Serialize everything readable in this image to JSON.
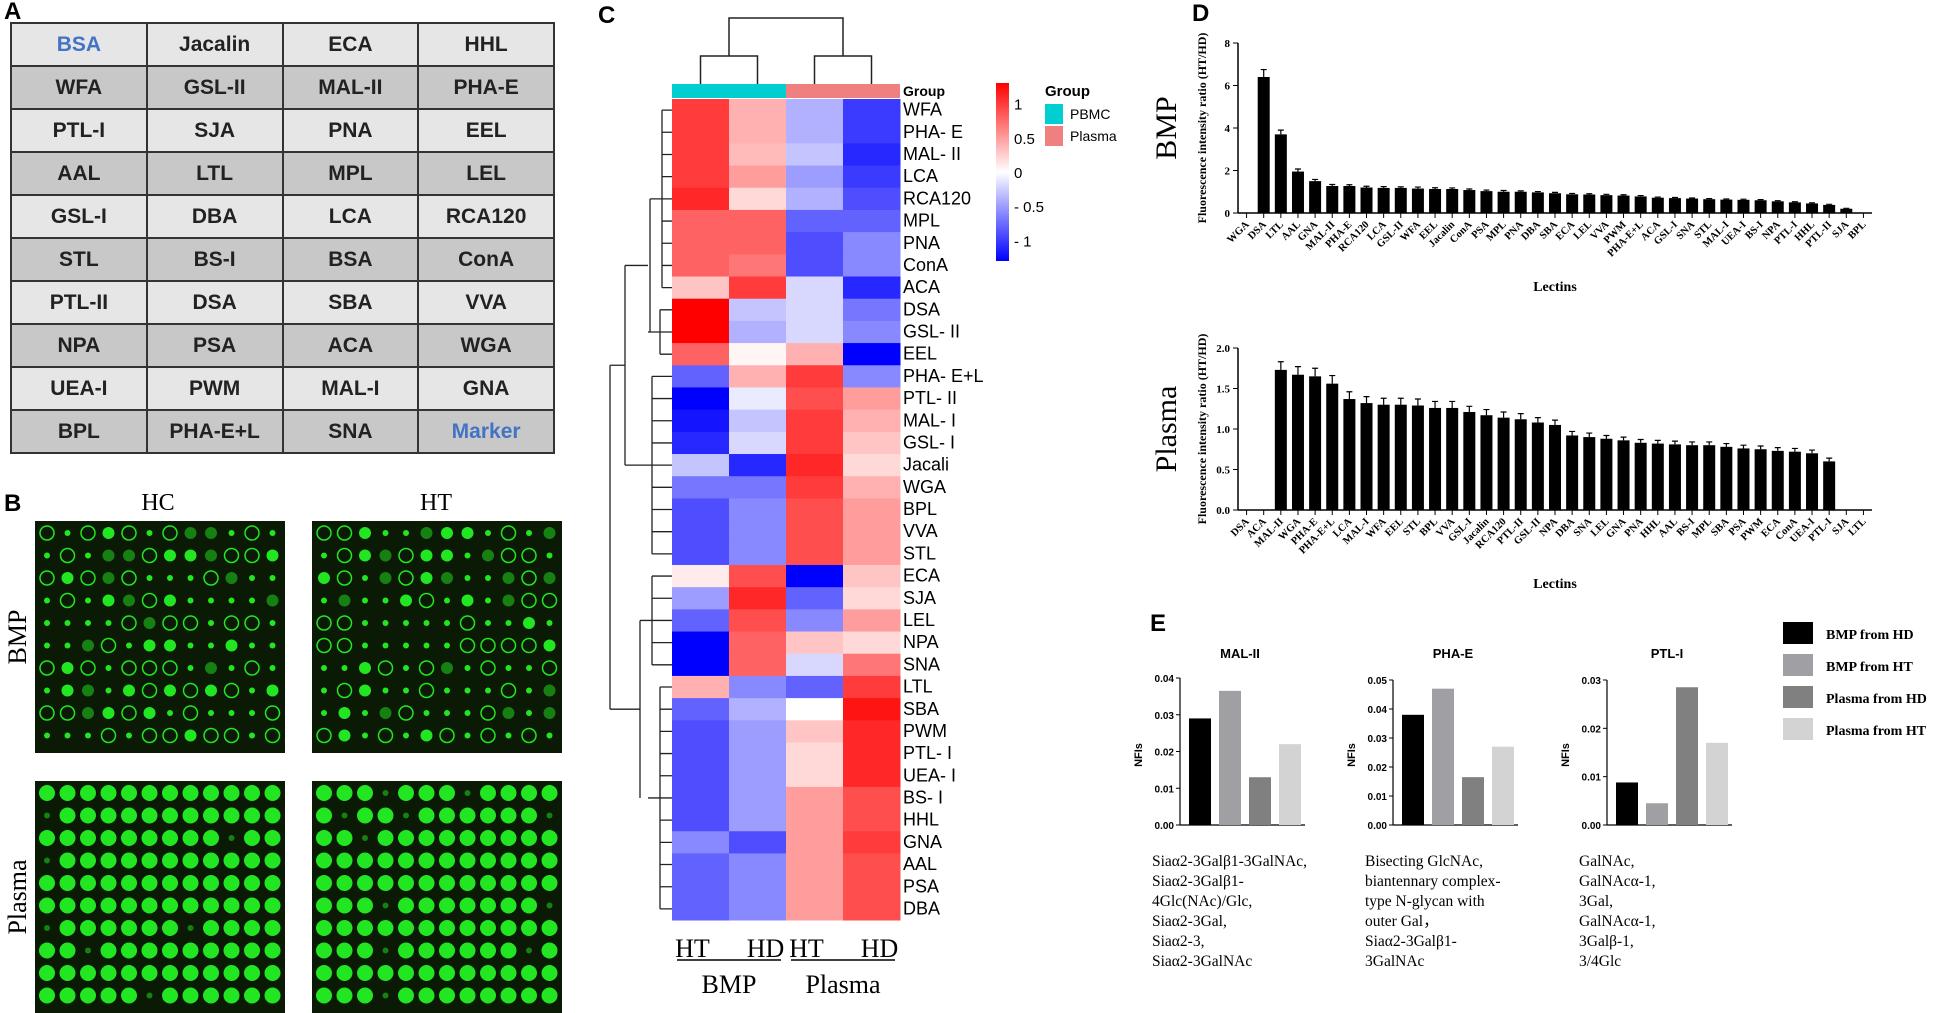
{
  "panel_labels": {
    "a": "A",
    "b": "B",
    "c": "C",
    "d": "D",
    "e": "E"
  },
  "panel_a": {
    "rows": [
      [
        "BSA",
        "Jacalin",
        "ECA",
        "HHL"
      ],
      [
        "WFA",
        "GSL-II",
        "MAL-II",
        "PHA-E"
      ],
      [
        "PTL-I",
        "SJA",
        "PNA",
        "EEL"
      ],
      [
        "AAL",
        "LTL",
        "MPL",
        "LEL"
      ],
      [
        "GSL-I",
        "DBA",
        "LCA",
        "RCA120"
      ],
      [
        "STL",
        "BS-I",
        "BSA",
        "ConA"
      ],
      [
        "PTL-II",
        "DSA",
        "SBA",
        "VVA"
      ],
      [
        "NPA",
        "PSA",
        "ACA",
        "WGA"
      ],
      [
        "UEA-I",
        "PWM",
        "MAL-I",
        "GNA"
      ],
      [
        "BPL",
        "PHA-E+L",
        "SNA",
        "Marker"
      ]
    ],
    "highlight_color": "#4472c4",
    "highlighted": [
      "0.0",
      "9.3"
    ]
  },
  "panel_b": {
    "col_labels": [
      "HC",
      "HT"
    ],
    "row_labels": [
      "BMP",
      "Plasma"
    ],
    "spot_color": "#22e622"
  },
  "chart_data": [
    {
      "id": "C",
      "type": "heatmap",
      "title": "",
      "columns": [
        "HT",
        "HD",
        "HT",
        "HD"
      ],
      "column_groups": [
        {
          "name": "BMP",
          "cols": [
            0,
            1
          ],
          "group": "PBMC"
        },
        {
          "name": "Plasma",
          "cols": [
            2,
            3
          ],
          "group": "Plasma"
        }
      ],
      "group_header": "Group",
      "legend": {
        "title": "Group",
        "entries": [
          {
            "label": "PBMC",
            "color": "#00ced1"
          },
          {
            "label": "Plasma",
            "color": "#f08080"
          }
        ]
      },
      "colorbar": {
        "ticks": [
          "1",
          "0.5",
          "0",
          "- 0.5",
          "- 1"
        ],
        "tick_values": [
          1,
          0.5,
          0,
          -0.5,
          -1
        ],
        "range": [
          -1.3,
          1.3
        ],
        "low": "#0000ff",
        "mid": "#ffffff",
        "high": "#ff0000"
      },
      "rows": [
        "WFA",
        "PHA- E",
        "MAL- II",
        "LCA",
        "RCA120",
        "MPL",
        "PNA",
        "ConA",
        "ACA",
        "DSA",
        "GSL- II",
        "EEL",
        "PHA- E+L",
        "PTL- II",
        "MAL- I",
        "GSL- I",
        "Jacali",
        "WGA",
        "BPL",
        "VVA",
        "STL",
        "ECA",
        "SJA",
        "LEL",
        "NPA",
        "SNA",
        "LTL",
        "SBA",
        "PWM",
        "PTL- I",
        "UEA- I",
        "BS- I",
        "HHL",
        "GNA",
        "AAL",
        "PSA",
        "DBA"
      ],
      "values": [
        [
          1.0,
          0.4,
          -0.4,
          -1.0
        ],
        [
          1.0,
          0.4,
          -0.4,
          -1.0
        ],
        [
          1.0,
          0.35,
          -0.3,
          -1.1
        ],
        [
          1.0,
          0.5,
          -0.5,
          -1.0
        ],
        [
          1.1,
          0.2,
          -0.4,
          -0.9
        ],
        [
          0.8,
          0.8,
          -0.8,
          -0.8
        ],
        [
          0.8,
          0.8,
          -0.9,
          -0.6
        ],
        [
          0.8,
          0.7,
          -0.9,
          -0.6
        ],
        [
          0.3,
          1.0,
          -0.2,
          -1.1
        ],
        [
          1.3,
          -0.3,
          -0.2,
          -0.7
        ],
        [
          1.3,
          -0.4,
          -0.2,
          -0.6
        ],
        [
          0.8,
          0.05,
          0.4,
          -1.3
        ],
        [
          -0.8,
          0.4,
          1.0,
          -0.6
        ],
        [
          -1.3,
          -0.1,
          0.9,
          0.5
        ],
        [
          -1.2,
          -0.3,
          1.0,
          0.4
        ],
        [
          -1.1,
          -0.2,
          1.0,
          0.3
        ],
        [
          -0.3,
          -1.1,
          1.1,
          0.2
        ],
        [
          -0.7,
          -0.7,
          1.0,
          0.4
        ],
        [
          -0.9,
          -0.6,
          0.9,
          0.5
        ],
        [
          -0.9,
          -0.6,
          0.9,
          0.5
        ],
        [
          -0.9,
          -0.6,
          0.9,
          0.5
        ],
        [
          0.1,
          0.9,
          -1.3,
          0.3
        ],
        [
          -0.5,
          1.1,
          -0.8,
          0.2
        ],
        [
          -0.8,
          0.9,
          -0.6,
          0.5
        ],
        [
          -1.3,
          0.8,
          0.3,
          0.2
        ],
        [
          -1.3,
          0.8,
          -0.2,
          0.7
        ],
        [
          0.4,
          -0.6,
          -0.8,
          1.0
        ],
        [
          -0.8,
          -0.4,
          0.0,
          1.2
        ],
        [
          -0.9,
          -0.5,
          0.3,
          1.1
        ],
        [
          -0.9,
          -0.5,
          0.2,
          1.1
        ],
        [
          -0.9,
          -0.5,
          0.2,
          1.1
        ],
        [
          -0.9,
          -0.5,
          0.5,
          0.9
        ],
        [
          -0.9,
          -0.5,
          0.5,
          0.9
        ],
        [
          -0.6,
          -0.9,
          0.5,
          1.0
        ],
        [
          -0.8,
          -0.6,
          0.5,
          0.9
        ],
        [
          -0.8,
          -0.6,
          0.5,
          0.9
        ],
        [
          -0.8,
          -0.6,
          0.5,
          0.9
        ]
      ]
    },
    {
      "id": "D-BMP",
      "type": "bar",
      "panel_title": "BMP",
      "ylabel": "Fluorescence intensity ratio (HT/HD)",
      "xlabel": "Lectins",
      "ylim": [
        0,
        8
      ],
      "yticks": [
        "0",
        "2",
        "4",
        "6",
        "8"
      ],
      "categories": [
        "WGA",
        "DSA",
        "LTL",
        "AAL",
        "GNA",
        "MAL-II",
        "PHA-E",
        "RCA120",
        "LCA",
        "GSL-II",
        "WFA",
        "EEL",
        "Jacalin",
        "ConA",
        "PSA",
        "MPL",
        "PNA",
        "DBA",
        "SBA",
        "ECA",
        "LEL",
        "VVA",
        "PWM",
        "PHA-E+L",
        "ACA",
        "GSL-I",
        "SNA",
        "STL",
        "MAL-I",
        "UEA-I",
        "BS-I",
        "NPA",
        "PTL-I",
        "HHL",
        "PTL-II",
        "SJA",
        "BPL"
      ],
      "values": [
        0,
        6.4,
        3.7,
        1.95,
        1.5,
        1.27,
        1.27,
        1.2,
        1.18,
        1.18,
        1.15,
        1.13,
        1.13,
        1.08,
        1.03,
        1.0,
        1.0,
        0.97,
        0.93,
        0.88,
        0.87,
        0.84,
        0.82,
        0.78,
        0.72,
        0.7,
        0.68,
        0.65,
        0.63,
        0.62,
        0.6,
        0.55,
        0.5,
        0.45,
        0.38,
        0.2,
        0
      ],
      "errors": [
        0,
        0.35,
        0.2,
        0.12,
        0.08,
        0.07,
        0.06,
        0.06,
        0.06,
        0.05,
        0.07,
        0.06,
        0.05,
        0.05,
        0.05,
        0.06,
        0.04,
        0.04,
        0.04,
        0.04,
        0.04,
        0.04,
        0.04,
        0.04,
        0.03,
        0.03,
        0.03,
        0.03,
        0.03,
        0.03,
        0.03,
        0.03,
        0.03,
        0.03,
        0.03,
        0.02,
        0
      ]
    },
    {
      "id": "D-Plasma",
      "type": "bar",
      "panel_title": "Plasma",
      "ylabel": "Fluorescence intensity ratio (HT/HD)",
      "xlabel": "Lectins",
      "ylim": [
        0,
        2
      ],
      "yticks": [
        "0.0",
        "0.5",
        "1.0",
        "1.5",
        "2.0"
      ],
      "categories": [
        "DSA",
        "ACA",
        "MAL-II",
        "WGA",
        "PHA-E",
        "PHA-E+L",
        "LCA",
        "MAL-I",
        "WFA",
        "EEL",
        "STL",
        "BPL",
        "VVA",
        "GSL-I",
        "Jacalin",
        "RCA120",
        "PTL-II",
        "GSL-II",
        "NPA",
        "DBA",
        "SNA",
        "LEL",
        "GNA",
        "PNA",
        "HHL",
        "AAL",
        "BS-I",
        "MPL",
        "SBA",
        "PSA",
        "PWM",
        "ECA",
        "ConA",
        "UEA-I",
        "PTL-I",
        "SJA",
        "LTL"
      ],
      "values": [
        0,
        0,
        1.73,
        1.67,
        1.65,
        1.56,
        1.37,
        1.32,
        1.3,
        1.3,
        1.29,
        1.26,
        1.26,
        1.21,
        1.17,
        1.14,
        1.12,
        1.08,
        1.05,
        0.92,
        0.9,
        0.88,
        0.86,
        0.83,
        0.82,
        0.81,
        0.8,
        0.8,
        0.78,
        0.76,
        0.75,
        0.73,
        0.72,
        0.7,
        0.6,
        0,
        0
      ],
      "errors": [
        0,
        0,
        0.1,
        0.1,
        0.1,
        0.1,
        0.09,
        0.08,
        0.08,
        0.08,
        0.08,
        0.08,
        0.08,
        0.07,
        0.07,
        0.07,
        0.07,
        0.06,
        0.06,
        0.05,
        0.05,
        0.04,
        0.04,
        0.04,
        0.04,
        0.04,
        0.04,
        0.04,
        0.04,
        0.04,
        0.04,
        0.04,
        0.04,
        0.04,
        0.04,
        0,
        0
      ]
    },
    {
      "id": "E",
      "type": "bar",
      "ylabel": "NFIs",
      "legend": [
        {
          "label": "BMP from HD",
          "color": "#000000"
        },
        {
          "label": "BMP from HT",
          "color": "#a0a0a4"
        },
        {
          "label": "Plasma from HD",
          "color": "#808080"
        },
        {
          "label": "Plasma from HT",
          "color": "#d3d3d3"
        }
      ],
      "subplots": [
        {
          "title": "MAL-II",
          "ylim": [
            0,
            0.04
          ],
          "yticks": [
            "0.00",
            "0.01",
            "0.02",
            "0.03",
            "0.04"
          ],
          "values": [
            0.029,
            0.0365,
            0.013,
            0.022
          ],
          "caption": [
            "Siaα2-3Galβ1-3GalNAc,",
            "Siaα2-3Galβ1-",
            "4Glc(NAc)/Glc,",
            "Siaα2-3Gal,",
            "Siaα2-3,",
            "Siaα2-3GalNAc"
          ]
        },
        {
          "title": "PHA-E",
          "ylim": [
            0,
            0.05
          ],
          "yticks": [
            "0.00",
            "0.01",
            "0.02",
            "0.03",
            "0.04",
            "0.05"
          ],
          "values": [
            0.038,
            0.047,
            0.0165,
            0.027
          ],
          "caption": [
            "Bisecting GlcNAc,",
            "biantennary complex-",
            "type N-glycan with",
            "outer Gal，",
            "Siaα2-3Galβ1-",
            "3GalNAc"
          ]
        },
        {
          "title": "PTL-I",
          "ylim": [
            0,
            0.03
          ],
          "yticks": [
            "0.00",
            "0.01",
            "0.02",
            "0.03"
          ],
          "values": [
            0.0088,
            0.0045,
            0.0285,
            0.017
          ],
          "caption": [
            "GalNAc,",
            "GalNAcα-1,",
            "3Gal,",
            "GalNAcα-1,",
            "3Galβ-1,",
            "3/4Glc"
          ]
        }
      ]
    }
  ]
}
